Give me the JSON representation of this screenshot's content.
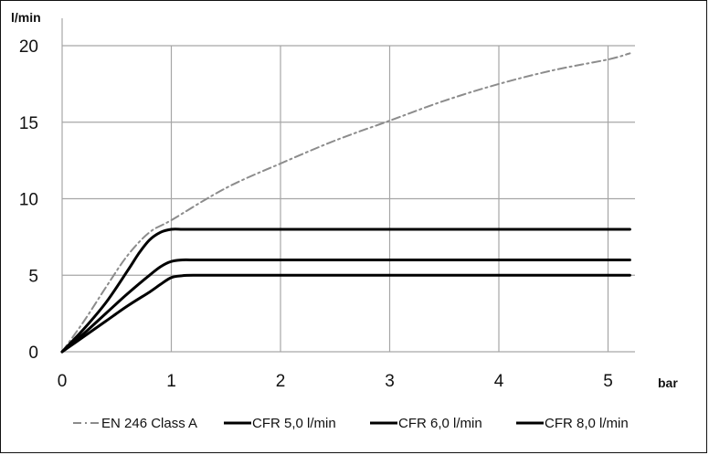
{
  "chart_data": {
    "type": "line",
    "xlabel": "bar",
    "ylabel": "l/min",
    "xlim": [
      0,
      5.2
    ],
    "ylim": [
      0,
      20
    ],
    "x_ticks": [
      "0",
      "1",
      "2",
      "3",
      "4",
      "5"
    ],
    "y_ticks": [
      "0",
      "5",
      "10",
      "15",
      "20"
    ],
    "grid": true,
    "legend_position": "bottom",
    "series": [
      {
        "name": "EN 246 Class A",
        "color": "#8c8c8c",
        "dash": "dash-dot",
        "x": [
          0,
          0.2,
          0.4,
          0.6,
          0.8,
          1.0,
          1.5,
          2.0,
          2.5,
          3.0,
          3.5,
          4.0,
          4.5,
          5.0,
          5.2
        ],
        "y": [
          0,
          2.0,
          4.2,
          6.3,
          7.8,
          8.6,
          10.7,
          12.3,
          13.8,
          15.1,
          16.4,
          17.5,
          18.4,
          19.1,
          19.5
        ]
      },
      {
        "name": "CFR 5,0 l/min",
        "color": "#000000",
        "dash": "solid",
        "x": [
          0,
          0.2,
          0.4,
          0.6,
          0.8,
          0.9,
          1.0,
          1.1,
          1.2,
          1.5,
          2.0,
          3.0,
          4.0,
          5.0,
          5.2
        ],
        "y": [
          0,
          1.0,
          2.0,
          3.0,
          3.9,
          4.4,
          4.85,
          4.97,
          5.0,
          5.0,
          5.0,
          5.0,
          5.0,
          5.0,
          5.0
        ]
      },
      {
        "name": "CFR 6,0 l/min",
        "color": "#000000",
        "dash": "solid",
        "x": [
          0,
          0.2,
          0.4,
          0.6,
          0.8,
          0.9,
          1.0,
          1.1,
          1.2,
          1.5,
          2.0,
          3.0,
          4.0,
          5.0,
          5.2
        ],
        "y": [
          0,
          1.2,
          2.5,
          3.8,
          5.0,
          5.55,
          5.9,
          6.0,
          6.0,
          6.0,
          6.0,
          6.0,
          6.0,
          6.0,
          6.0
        ]
      },
      {
        "name": "CFR 8,0 l/min",
        "color": "#000000",
        "dash": "solid",
        "x": [
          0,
          0.2,
          0.4,
          0.6,
          0.7,
          0.8,
          0.9,
          1.0,
          1.1,
          1.2,
          1.5,
          2.0,
          3.0,
          4.0,
          5.0,
          5.2
        ],
        "y": [
          0,
          1.5,
          3.2,
          5.3,
          6.4,
          7.3,
          7.8,
          8.0,
          8.0,
          8.0,
          8.0,
          8.0,
          8.0,
          8.0,
          8.0,
          8.0
        ]
      }
    ]
  }
}
